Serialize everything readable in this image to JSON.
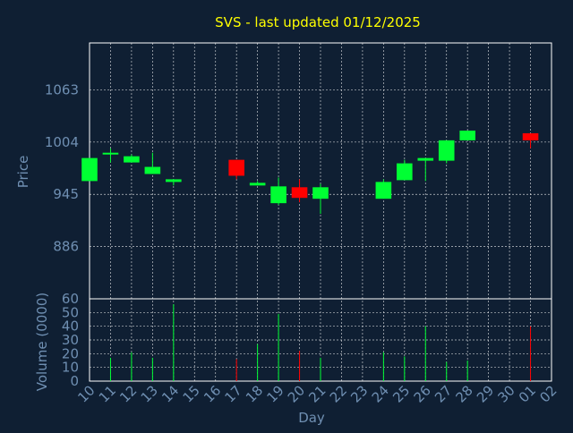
{
  "chart_data": {
    "type": "candlestick",
    "title": "SVS - last updated 01/12/2025",
    "xlabel": "Day",
    "colors": {
      "background": "#0f1f33",
      "up": "#00ff33",
      "down": "#ff0000",
      "title": "#ffff00",
      "axis_text": "#6f8fb2",
      "grid": "#ffffff"
    },
    "x_tick_labels": [
      "10",
      "11",
      "12",
      "13",
      "14",
      "15",
      "16",
      "17",
      "18",
      "19",
      "20",
      "21",
      "22",
      "23",
      "24",
      "25",
      "26",
      "27",
      "28",
      "29",
      "30",
      "01",
      "02"
    ],
    "price_panel": {
      "ylabel": "Price",
      "ylim": [
        827,
        1116
      ],
      "y_ticks": [
        886,
        945,
        1004,
        1063
      ],
      "grid": true,
      "candles": [
        {
          "day": "10",
          "open": 960,
          "close": 986,
          "high": 986,
          "low": 960
        },
        {
          "day": "11",
          "open": 990,
          "close": 992,
          "high": 997,
          "low": 981
        },
        {
          "day": "12",
          "open": 981,
          "close": 988,
          "high": 990,
          "low": 981
        },
        {
          "day": "13",
          "open": 968,
          "close": 976,
          "high": 992,
          "low": 968
        },
        {
          "day": "14",
          "open": 959,
          "close": 962,
          "high": 962,
          "low": 955
        },
        {
          "day": "17",
          "open": 984,
          "close": 966,
          "high": 984,
          "low": 962
        },
        {
          "day": "18",
          "open": 955,
          "close": 958,
          "high": 960,
          "low": 955
        },
        {
          "day": "19",
          "open": 935,
          "close": 954,
          "high": 964,
          "low": 933
        },
        {
          "day": "20",
          "open": 953,
          "close": 941,
          "high": 962,
          "low": 936
        },
        {
          "day": "21",
          "open": 940,
          "close": 953,
          "high": 957,
          "low": 923
        },
        {
          "day": "24",
          "open": 940,
          "close": 959,
          "high": 962,
          "low": 940
        },
        {
          "day": "25",
          "open": 961,
          "close": 980,
          "high": 984,
          "low": 961
        },
        {
          "day": "26",
          "open": 983,
          "close": 986,
          "high": 986,
          "low": 960
        },
        {
          "day": "27",
          "open": 983,
          "close": 1006,
          "high": 1006,
          "low": 980
        },
        {
          "day": "28",
          "open": 1006,
          "close": 1017,
          "high": 1017,
          "low": 1006
        },
        {
          "day": "01",
          "open": 1014,
          "close": 1006,
          "high": 1014,
          "low": 997
        }
      ]
    },
    "volume_panel": {
      "ylabel": "Volume (0000)",
      "ylim": [
        0,
        60
      ],
      "y_ticks": [
        0,
        10,
        20,
        30,
        40,
        50,
        60
      ],
      "grid": true,
      "bars": [
        {
          "day": "11",
          "value": 17,
          "direction": "up"
        },
        {
          "day": "12",
          "value": 21,
          "direction": "up"
        },
        {
          "day": "13",
          "value": 17,
          "direction": "up"
        },
        {
          "day": "14",
          "value": 56,
          "direction": "up"
        },
        {
          "day": "17",
          "value": 16,
          "direction": "down"
        },
        {
          "day": "18",
          "value": 27,
          "direction": "up"
        },
        {
          "day": "19",
          "value": 49,
          "direction": "up"
        },
        {
          "day": "20",
          "value": 22,
          "direction": "down"
        },
        {
          "day": "21",
          "value": 17,
          "direction": "up"
        },
        {
          "day": "24",
          "value": 21,
          "direction": "up"
        },
        {
          "day": "25",
          "value": 18,
          "direction": "up"
        },
        {
          "day": "26",
          "value": 40,
          "direction": "up"
        },
        {
          "day": "27",
          "value": 14,
          "direction": "up"
        },
        {
          "day": "28",
          "value": 15,
          "direction": "up"
        },
        {
          "day": "01",
          "value": 40,
          "direction": "down"
        }
      ]
    }
  }
}
